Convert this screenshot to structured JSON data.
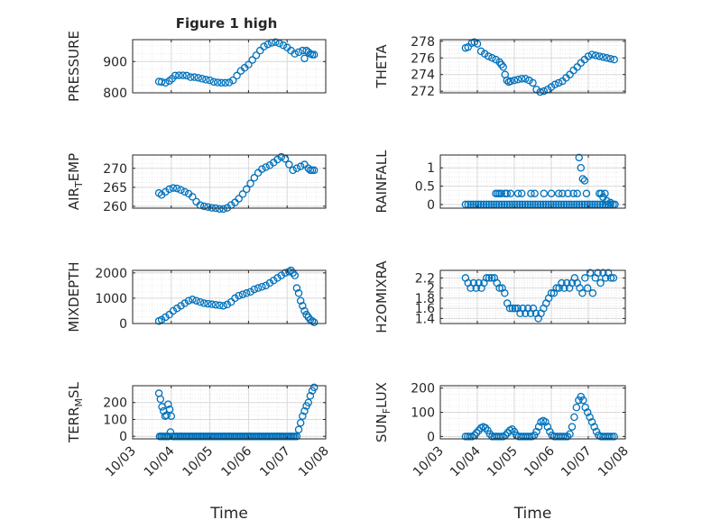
{
  "figure": {
    "title": "Figure 1 high"
  },
  "chart_data": [
    {
      "type": "scatter",
      "id": "pressure",
      "ylabel": "PRESSURE",
      "ylim": [
        800,
        970
      ],
      "yticks": [
        800,
        900
      ],
      "grid": true,
      "marker_color": "#0072BD",
      "x": [
        0.68,
        0.75,
        0.85,
        0.95,
        1.02,
        1.1,
        1.2,
        1.3,
        1.4,
        1.5,
        1.6,
        1.7,
        1.8,
        1.9,
        2.0,
        2.1,
        2.2,
        2.3,
        2.4,
        2.5,
        2.6,
        2.7,
        2.8,
        2.9,
        3.0,
        3.1,
        3.2,
        3.3,
        3.4,
        3.5,
        3.6,
        3.7,
        3.8,
        3.9,
        4.0,
        4.1,
        4.2,
        4.3,
        4.4,
        4.45,
        4.5,
        4.55,
        4.6,
        4.65,
        4.7
      ],
      "y": [
        836,
        835,
        832,
        838,
        845,
        855,
        856,
        856,
        855,
        850,
        850,
        848,
        845,
        842,
        840,
        835,
        833,
        832,
        832,
        833,
        840,
        855,
        870,
        880,
        890,
        905,
        920,
        935,
        948,
        955,
        960,
        962,
        958,
        952,
        945,
        935,
        925,
        930,
        935,
        910,
        935,
        930,
        925,
        922,
        922
      ]
    },
    {
      "type": "scatter",
      "id": "theta",
      "ylabel": "THETA",
      "ylim": [
        271.8,
        278.2
      ],
      "yticks": [
        272,
        274,
        276,
        278
      ],
      "grid": true,
      "marker_color": "#0072BD",
      "x": [
        0.68,
        0.75,
        0.85,
        0.92,
        1.0,
        1.1,
        1.2,
        1.3,
        1.4,
        1.5,
        1.6,
        1.65,
        1.7,
        1.75,
        1.8,
        1.85,
        1.9,
        2.0,
        2.1,
        2.2,
        2.3,
        2.4,
        2.5,
        2.6,
        2.7,
        2.8,
        2.9,
        3.0,
        3.1,
        3.2,
        3.3,
        3.4,
        3.5,
        3.6,
        3.7,
        3.8,
        3.9,
        4.0,
        4.1,
        4.2,
        4.3,
        4.4,
        4.5,
        4.6,
        4.7
      ],
      "y": [
        277.2,
        277.3,
        277.8,
        277.9,
        277.7,
        276.8,
        276.5,
        276.2,
        276.0,
        275.8,
        275.5,
        275.2,
        274.9,
        274.0,
        273.3,
        273.1,
        273.2,
        273.3,
        273.4,
        273.5,
        273.5,
        273.3,
        273.0,
        272.2,
        271.9,
        272.0,
        272.2,
        272.5,
        272.8,
        273.0,
        273.2,
        273.6,
        274.0,
        274.5,
        274.9,
        275.4,
        275.8,
        276.2,
        276.4,
        276.3,
        276.2,
        276.1,
        276.0,
        275.9,
        275.8
      ]
    },
    {
      "type": "scatter",
      "id": "air_temp",
      "ylabel": "AIR",
      "ylabel_sub": "T",
      "ylabel_after": "EMP",
      "ylim": [
        259.5,
        273.5
      ],
      "yticks": [
        260,
        265,
        270
      ],
      "grid": true,
      "marker_color": "#0072BD",
      "x": [
        0.68,
        0.75,
        0.85,
        0.95,
        1.05,
        1.15,
        1.25,
        1.35,
        1.45,
        1.55,
        1.65,
        1.75,
        1.85,
        1.95,
        2.05,
        2.15,
        2.25,
        2.35,
        2.45,
        2.55,
        2.65,
        2.75,
        2.85,
        2.95,
        3.05,
        3.15,
        3.25,
        3.35,
        3.45,
        3.55,
        3.65,
        3.75,
        3.85,
        3.95,
        4.05,
        4.15,
        4.25,
        4.35,
        4.45,
        4.55,
        4.6,
        4.65,
        4.7
      ],
      "y": [
        263.5,
        263.0,
        263.8,
        264.5,
        264.8,
        264.7,
        264.3,
        263.8,
        263.3,
        262.5,
        261.2,
        260.3,
        260.0,
        259.8,
        259.6,
        259.5,
        259.3,
        259.3,
        259.6,
        260.3,
        261.0,
        262.0,
        263.2,
        264.5,
        266.0,
        267.5,
        268.8,
        269.8,
        270.3,
        270.8,
        271.5,
        272.3,
        273.0,
        272.5,
        271.0,
        269.5,
        270.0,
        270.5,
        271.0,
        270.0,
        269.5,
        269.5,
        269.5
      ]
    },
    {
      "type": "scatter",
      "id": "rainfall",
      "ylabel": "RAINFALL",
      "ylim": [
        -0.1,
        1.35
      ],
      "yticks": [
        0,
        0.5,
        1
      ],
      "grid": true,
      "marker_color": "#0072BD",
      "x": [
        0.68,
        0.75,
        0.82,
        0.89,
        0.96,
        1.03,
        1.1,
        1.17,
        1.24,
        1.31,
        1.38,
        1.45,
        1.52,
        1.59,
        1.66,
        1.73,
        1.8,
        1.87,
        1.94,
        2.01,
        2.08,
        2.15,
        2.22,
        2.29,
        2.36,
        2.43,
        2.5,
        2.57,
        2.64,
        2.71,
        2.78,
        2.85,
        2.92,
        2.99,
        3.06,
        3.13,
        3.2,
        3.27,
        3.34,
        3.41,
        3.48,
        3.55,
        3.62,
        3.69,
        3.76,
        3.83,
        3.9,
        3.97,
        4.04,
        4.11,
        4.18,
        4.25,
        4.32,
        4.39,
        4.46,
        4.53,
        4.6,
        4.67,
        4.72,
        1.5,
        1.55,
        1.6,
        1.65,
        1.75,
        1.8,
        1.9,
        2.1,
        2.2,
        2.45,
        2.55,
        2.8,
        3.0,
        3.2,
        3.3,
        3.45,
        3.6,
        3.7,
        3.75,
        3.8,
        3.85,
        3.9,
        3.95,
        4.3,
        4.35,
        4.4,
        4.45,
        4.5,
        4.6
      ],
      "y": [
        0,
        0,
        0,
        0,
        0,
        0,
        0,
        0,
        0,
        0,
        0,
        0,
        0,
        0,
        0,
        0,
        0,
        0,
        0,
        0,
        0,
        0,
        0,
        0,
        0,
        0,
        0,
        0,
        0,
        0,
        0,
        0,
        0,
        0,
        0,
        0,
        0,
        0,
        0,
        0,
        0,
        0,
        0,
        0,
        0,
        0,
        0,
        0,
        0,
        0,
        0,
        0,
        0,
        0,
        0,
        0,
        0,
        0,
        0,
        0.3,
        0.3,
        0.3,
        0.3,
        0.3,
        0.3,
        0.3,
        0.3,
        0.3,
        0.3,
        0.3,
        0.3,
        0.3,
        0.3,
        0.3,
        0.3,
        0.3,
        0.3,
        1.28,
        1.0,
        0.7,
        0.65,
        0.3,
        0.3,
        0.3,
        0.2,
        0.3,
        0.1,
        0.05
      ]
    },
    {
      "type": "scatter",
      "id": "mixdepth",
      "ylabel": "MIXDEPTH",
      "ylim": [
        0,
        2100
      ],
      "yticks": [
        0,
        1000,
        2000
      ],
      "grid": true,
      "marker_color": "#0072BD",
      "x": [
        0.68,
        0.75,
        0.85,
        0.95,
        1.05,
        1.15,
        1.25,
        1.35,
        1.45,
        1.55,
        1.65,
        1.75,
        1.85,
        1.95,
        2.05,
        2.15,
        2.25,
        2.35,
        2.45,
        2.55,
        2.65,
        2.75,
        2.85,
        2.95,
        3.05,
        3.15,
        3.25,
        3.35,
        3.45,
        3.55,
        3.65,
        3.75,
        3.85,
        3.95,
        4.05,
        4.1,
        4.15,
        4.2,
        4.25,
        4.3,
        4.35,
        4.4,
        4.45,
        4.5,
        4.55,
        4.6,
        4.65,
        4.7
      ],
      "y": [
        100,
        150,
        250,
        350,
        500,
        600,
        700,
        800,
        900,
        950,
        900,
        850,
        800,
        780,
        760,
        740,
        720,
        700,
        750,
        850,
        1000,
        1100,
        1150,
        1200,
        1250,
        1350,
        1400,
        1450,
        1500,
        1600,
        1700,
        1800,
        1900,
        2000,
        2050,
        2100,
        2000,
        1900,
        1400,
        1200,
        900,
        700,
        500,
        350,
        250,
        150,
        100,
        50
      ]
    },
    {
      "type": "scatter",
      "id": "h2omixra",
      "ylabel": "H2OMIXRA",
      "ylim": [
        1.3,
        2.35
      ],
      "yticks": [
        1.4,
        1.6,
        1.8,
        2,
        2.2
      ],
      "grid": true,
      "marker_color": "#0072BD",
      "x": [
        0.68,
        0.75,
        0.82,
        0.9,
        0.97,
        1.04,
        1.11,
        1.18,
        1.25,
        1.32,
        1.39,
        1.46,
        1.53,
        1.6,
        1.67,
        1.74,
        1.81,
        1.88,
        1.95,
        2.02,
        2.09,
        2.16,
        2.23,
        2.3,
        2.37,
        2.44,
        2.51,
        2.58,
        2.65,
        2.72,
        2.79,
        2.86,
        2.93,
        3.0,
        3.07,
        3.14,
        3.21,
        3.28,
        3.35,
        3.42,
        3.49,
        3.56,
        3.63,
        3.7,
        3.77,
        3.84,
        3.91,
        3.98,
        4.05,
        4.12,
        4.19,
        4.26,
        4.33,
        4.4,
        4.47,
        4.54,
        4.61,
        4.68
      ],
      "y": [
        2.2,
        2.1,
        2.0,
        2.1,
        2.0,
        2.1,
        2.0,
        2.1,
        2.2,
        2.2,
        2.2,
        2.2,
        2.1,
        2.0,
        2.0,
        1.9,
        1.7,
        1.6,
        1.6,
        1.6,
        1.6,
        1.5,
        1.6,
        1.5,
        1.6,
        1.5,
        1.6,
        1.5,
        1.4,
        1.5,
        1.6,
        1.7,
        1.8,
        1.9,
        1.9,
        2.0,
        2.0,
        2.1,
        2.0,
        2.1,
        2.0,
        2.1,
        2.2,
        2.1,
        2.0,
        1.9,
        2.2,
        2.0,
        2.3,
        1.9,
        2.2,
        2.3,
        2.1,
        2.3,
        2.2,
        2.3,
        2.2,
        2.2
      ]
    },
    {
      "type": "scatter",
      "id": "terr_msl",
      "ylabel": "TERR",
      "ylabel_sub": "M",
      "ylabel_after": "SL",
      "ylim": [
        -15,
        300
      ],
      "yticks": [
        0,
        100,
        200
      ],
      "grid": true,
      "marker_color": "#0072BD",
      "x": [
        0.68,
        0.72,
        0.76,
        0.8,
        0.84,
        0.88,
        0.92,
        0.96,
        1.0,
        0.7,
        0.74,
        0.78,
        0.82,
        0.86,
        0.9,
        0.94,
        0.98,
        1.04,
        1.08,
        1.12,
        1.16,
        1.2,
        1.24,
        1.28,
        1.32,
        1.36,
        1.4,
        1.44,
        1.48,
        1.52,
        1.56,
        1.6,
        1.64,
        1.68,
        1.72,
        1.76,
        1.8,
        1.84,
        1.88,
        1.92,
        1.96,
        2.0,
        2.04,
        2.08,
        2.12,
        2.16,
        2.2,
        2.24,
        2.28,
        2.32,
        2.36,
        2.4,
        2.44,
        2.48,
        2.52,
        2.56,
        2.6,
        2.64,
        2.68,
        2.72,
        2.76,
        2.8,
        2.84,
        2.88,
        2.92,
        2.96,
        3.0,
        3.04,
        3.08,
        3.12,
        3.16,
        3.2,
        3.24,
        3.28,
        3.32,
        3.36,
        3.4,
        3.44,
        3.48,
        3.52,
        3.56,
        3.6,
        3.64,
        3.68,
        3.72,
        3.76,
        3.8,
        3.84,
        3.88,
        3.92,
        3.96,
        4.0,
        4.04,
        4.08,
        4.12,
        4.16,
        4.2,
        4.25,
        4.3,
        4.35,
        4.4,
        4.45,
        4.5,
        4.55,
        4.6,
        4.65,
        4.7
      ],
      "y": [
        255,
        220,
        175,
        150,
        120,
        125,
        190,
        160,
        120,
        0,
        0,
        0,
        0,
        0,
        0,
        0,
        25,
        0,
        0,
        0,
        0,
        0,
        0,
        0,
        0,
        0,
        0,
        0,
        0,
        0,
        0,
        0,
        0,
        0,
        0,
        0,
        0,
        0,
        0,
        0,
        0,
        0,
        0,
        0,
        0,
        0,
        0,
        0,
        0,
        0,
        0,
        0,
        0,
        0,
        0,
        0,
        0,
        0,
        0,
        0,
        0,
        0,
        0,
        0,
        0,
        0,
        0,
        0,
        0,
        0,
        0,
        0,
        0,
        0,
        0,
        0,
        0,
        0,
        0,
        0,
        0,
        0,
        0,
        0,
        0,
        0,
        0,
        0,
        0,
        0,
        0,
        0,
        0,
        0,
        0,
        0,
        0,
        0,
        40,
        80,
        120,
        150,
        180,
        200,
        240,
        270,
        290
      ]
    },
    {
      "type": "scatter",
      "id": "sun_flux",
      "ylabel": "SUN",
      "ylabel_sub": "F",
      "ylabel_after": "LUX",
      "ylim": [
        -10,
        210
      ],
      "yticks": [
        0,
        100,
        200
      ],
      "grid": true,
      "marker_color": "#0072BD",
      "x": [
        0.68,
        0.74,
        0.8,
        0.86,
        0.92,
        0.98,
        1.04,
        1.1,
        1.16,
        1.22,
        1.28,
        1.34,
        1.4,
        1.46,
        1.52,
        1.58,
        1.64,
        1.7,
        1.76,
        1.82,
        1.88,
        1.94,
        2.0,
        2.06,
        2.12,
        2.18,
        2.24,
        2.3,
        2.36,
        2.42,
        2.48,
        2.54,
        2.6,
        2.66,
        2.72,
        2.78,
        2.84,
        2.9,
        2.96,
        3.02,
        3.08,
        3.14,
        3.2,
        3.26,
        3.32,
        3.38,
        3.44,
        3.5,
        3.56,
        3.62,
        3.68,
        3.74,
        3.8,
        3.86,
        3.92,
        3.98,
        4.04,
        4.1,
        4.16,
        4.22,
        4.28,
        4.34,
        4.4,
        4.46,
        4.52,
        4.58,
        4.64,
        4.7
      ],
      "y": [
        0,
        0,
        0,
        0,
        5,
        15,
        25,
        35,
        40,
        35,
        25,
        10,
        0,
        0,
        0,
        0,
        0,
        0,
        5,
        15,
        25,
        30,
        20,
        5,
        0,
        0,
        0,
        0,
        0,
        0,
        0,
        5,
        20,
        40,
        60,
        65,
        60,
        40,
        20,
        5,
        0,
        0,
        0,
        0,
        0,
        0,
        0,
        10,
        40,
        80,
        120,
        150,
        165,
        150,
        120,
        100,
        80,
        60,
        40,
        20,
        5,
        0,
        0,
        0,
        0,
        0,
        0,
        0
      ]
    }
  ],
  "x_axis": {
    "xlabel": "Time",
    "xlim": [
      0,
      5
    ],
    "ticks": [
      0,
      1,
      2,
      3,
      4,
      5
    ],
    "tick_labels": [
      "10/03",
      "10/04",
      "10/05",
      "10/06",
      "10/07",
      "10/08"
    ]
  }
}
